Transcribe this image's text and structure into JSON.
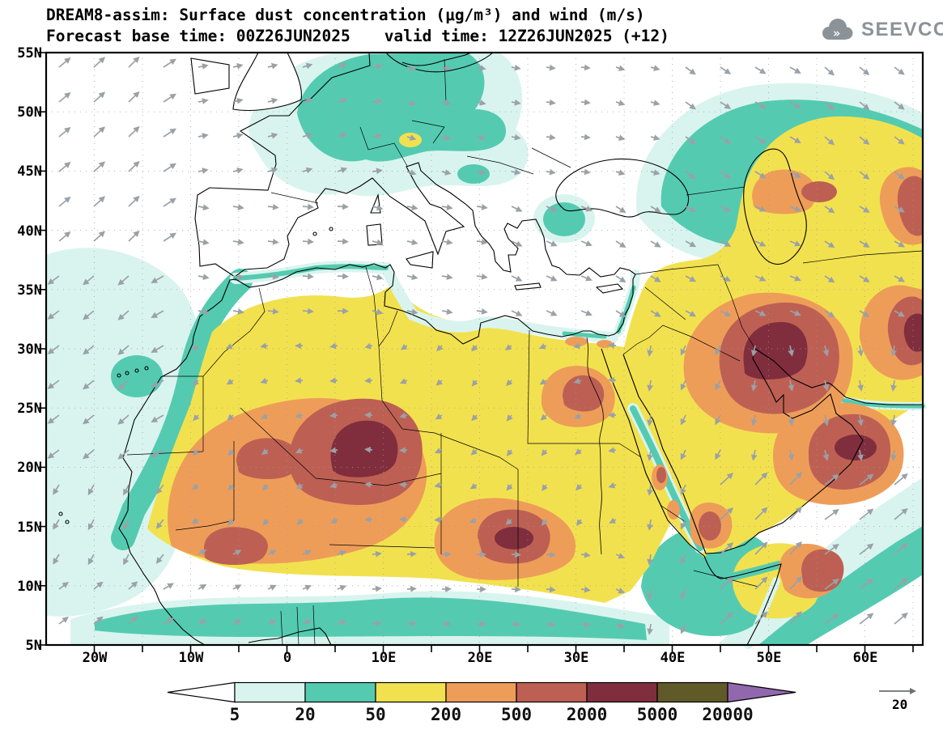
{
  "header": {
    "title": "DREAM8-assim: Surface dust concentration (μg/m³) and wind (m/s)",
    "subtitle_left": "Forecast base time: 00Z26JUN2025",
    "subtitle_right": "valid time: 12Z26JUN2025 (+12)",
    "logo": "SEEVCCC"
  },
  "map": {
    "lat_ticks": [
      "55N",
      "50N",
      "45N",
      "40N",
      "35N",
      "30N",
      "25N",
      "20N",
      "15N",
      "10N",
      "5N"
    ],
    "lon_ticks": [
      "20W",
      "10W",
      "0",
      "10E",
      "20E",
      "30E",
      "40E",
      "50E",
      "60E"
    ]
  },
  "palette": {
    "blank": "#ffffff",
    "c5": "#d9f4ef",
    "c20": "#54cbb1",
    "c50": "#f2e14f",
    "c200": "#ee9d59",
    "c500": "#bd6053",
    "c2000": "#802e3e",
    "c5000": "#5f5a28",
    "c20000": "#9168ae",
    "wind": "#9aa1a7"
  },
  "colorbar": {
    "tick_labels": [
      "5",
      "20",
      "50",
      "200",
      "500",
      "2000",
      "5000",
      "20000"
    ]
  },
  "wind_legend": {
    "reference_value": "20"
  },
  "chart_data": {
    "type": "heatmap",
    "title": "DREAM8-assim: Surface dust concentration (μg/m³) and wind (m/s)",
    "forecast_base_time": "00Z26JUN2025",
    "valid_time": "12Z26JUN2025 (+12)",
    "lead_hours": 12,
    "variable": "Surface dust concentration (μg/m³) with wind vectors (m/s)",
    "extent": {
      "lon": [
        -25,
        66
      ],
      "lat": [
        5,
        55
      ]
    },
    "x_ticks": [
      "20W",
      "10W",
      "0",
      "10E",
      "20E",
      "30E",
      "40E",
      "50E",
      "60E"
    ],
    "y_ticks": [
      "5N",
      "10N",
      "15N",
      "20N",
      "25N",
      "30N",
      "35N",
      "40N",
      "45N",
      "50N",
      "55N"
    ],
    "contour_levels_ug_m3": [
      5,
      20,
      50,
      200,
      500,
      2000,
      5000,
      20000
    ],
    "level_colors": [
      "#ffffff",
      "#d9f4ef",
      "#54cbb1",
      "#f2e14f",
      "#ee9d59",
      "#bd6053",
      "#802e3e",
      "#5f5a28",
      "#9168ae"
    ],
    "wind_reference_ms": 20,
    "features": [
      "500-5000 μg/m³ dust cores over central Algeria/Mali, southern Libya-Chad (~18N,20E), Mauritania, Iraq/northern Saudi Arabia, Oman/SE Arabia, Somalia and eastern Iran",
      "50-200 μg/m³ dust blankets the Sahara from the Atlantic coast to the Red Sea, most of the Arabian Peninsula, Iran and the Caspian region",
      "20-50 μg/m³ over central Europe, the NW African coast, the Sahel band, Horn of Africa and the Arabian Sea fringe"
    ]
  }
}
